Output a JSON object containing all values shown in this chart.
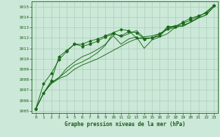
{
  "title": "Graphe pression niveau de la mer (hPa)",
  "background_color": "#cce8d8",
  "grid_color": "#aaccb8",
  "line_color": "#1a6b1a",
  "marker_color": "#1a6b1a",
  "xlim": [
    -0.5,
    23.5
  ],
  "ylim": [
    1004.8,
    1015.5
  ],
  "yticks": [
    1005,
    1006,
    1007,
    1008,
    1009,
    1010,
    1011,
    1012,
    1013,
    1014,
    1015
  ],
  "xticks": [
    0,
    1,
    2,
    3,
    4,
    5,
    6,
    7,
    8,
    9,
    10,
    11,
    12,
    13,
    14,
    15,
    16,
    17,
    18,
    19,
    20,
    21,
    22,
    23
  ],
  "series1": [
    1005.2,
    1006.7,
    1007.6,
    1008.1,
    1008.4,
    1009.0,
    1009.4,
    1009.7,
    1010.0,
    1010.4,
    1010.8,
    1011.2,
    1011.6,
    1011.9,
    1012.1,
    1012.2,
    1012.4,
    1012.8,
    1013.0,
    1013.2,
    1013.5,
    1013.9,
    1014.2,
    1015.0
  ],
  "series2": [
    1005.2,
    1006.7,
    1007.7,
    1008.2,
    1008.8,
    1009.4,
    1009.7,
    1010.1,
    1010.6,
    1011.3,
    1012.5,
    1012.1,
    1012.4,
    1012.7,
    1012.0,
    1012.0,
    1012.2,
    1012.9,
    1013.2,
    1013.1,
    1013.5,
    1013.9,
    1014.2,
    1015.0
  ],
  "series3": [
    1005.2,
    1006.7,
    1007.7,
    1008.2,
    1009.1,
    1009.7,
    1010.2,
    1010.5,
    1010.9,
    1011.4,
    1012.2,
    1011.4,
    1011.9,
    1012.1,
    1011.0,
    1011.8,
    1012.1,
    1012.4,
    1013.0,
    1013.2,
    1013.5,
    1014.0,
    1014.5,
    1015.1
  ],
  "series4_marked": [
    1005.2,
    1006.7,
    1007.9,
    1010.2,
    1010.8,
    1011.4,
    1011.2,
    1011.4,
    1011.7,
    1012.1,
    1012.4,
    1012.2,
    1012.6,
    1012.5,
    1011.9,
    1012.0,
    1012.2,
    1013.1,
    1013.1,
    1013.4,
    1013.7,
    1014.1,
    1014.4,
    1015.1
  ],
  "series5_marked": [
    1005.2,
    1007.6,
    1008.6,
    1009.9,
    1010.7,
    1011.4,
    1011.4,
    1011.7,
    1011.9,
    1012.2,
    1012.5,
    1012.8,
    1012.7,
    1012.0,
    1011.9,
    1012.0,
    1012.4,
    1012.9,
    1013.1,
    1013.5,
    1013.9,
    1014.1,
    1014.4,
    1015.1
  ]
}
